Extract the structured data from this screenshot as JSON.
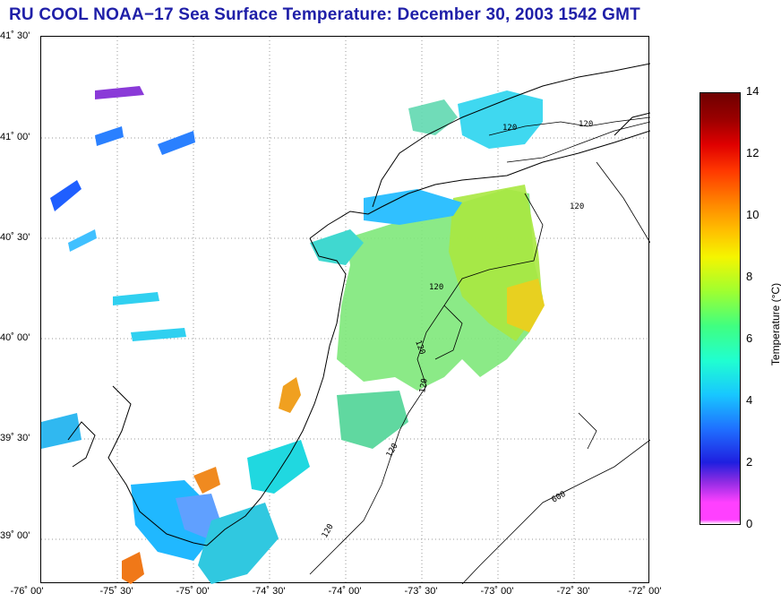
{
  "title": "RU COOL  NOAA−17  Sea Surface Temperature:  December 30, 2003 1542 GMT",
  "map": {
    "lat_ticks": [
      "41˚ 30'",
      "41˚ 00'",
      "40˚ 30'",
      "40˚ 00'",
      "39˚ 30'",
      "39˚ 00'"
    ],
    "lon_ticks": [
      "-76˚ 00'",
      "-75˚ 30'",
      "-75˚ 00'",
      "-74˚ 30'",
      "-74˚ 00'",
      "-73˚ 30'",
      "-73˚ 00'",
      "-72˚ 30'",
      "-72˚ 00'"
    ],
    "lat_values": [
      41.5,
      41.0,
      40.5,
      40.0,
      39.5,
      39.0
    ],
    "lon_values": [
      -76.0,
      -75.5,
      -75.0,
      -74.5,
      -74.0,
      -73.5,
      -73.0,
      -72.5,
      -72.0
    ],
    "contour_labels": [
      "120",
      "120",
      "120",
      "120",
      "120",
      "120",
      "120",
      "120",
      "600"
    ],
    "land_color": "#ffffff",
    "coast_color": "#000000"
  },
  "colorbar": {
    "ticks": [
      "14",
      "12",
      "10",
      "8",
      "6",
      "4",
      "2",
      "0"
    ],
    "min": 0,
    "max": 14,
    "label": "Temperature (°C)"
  }
}
